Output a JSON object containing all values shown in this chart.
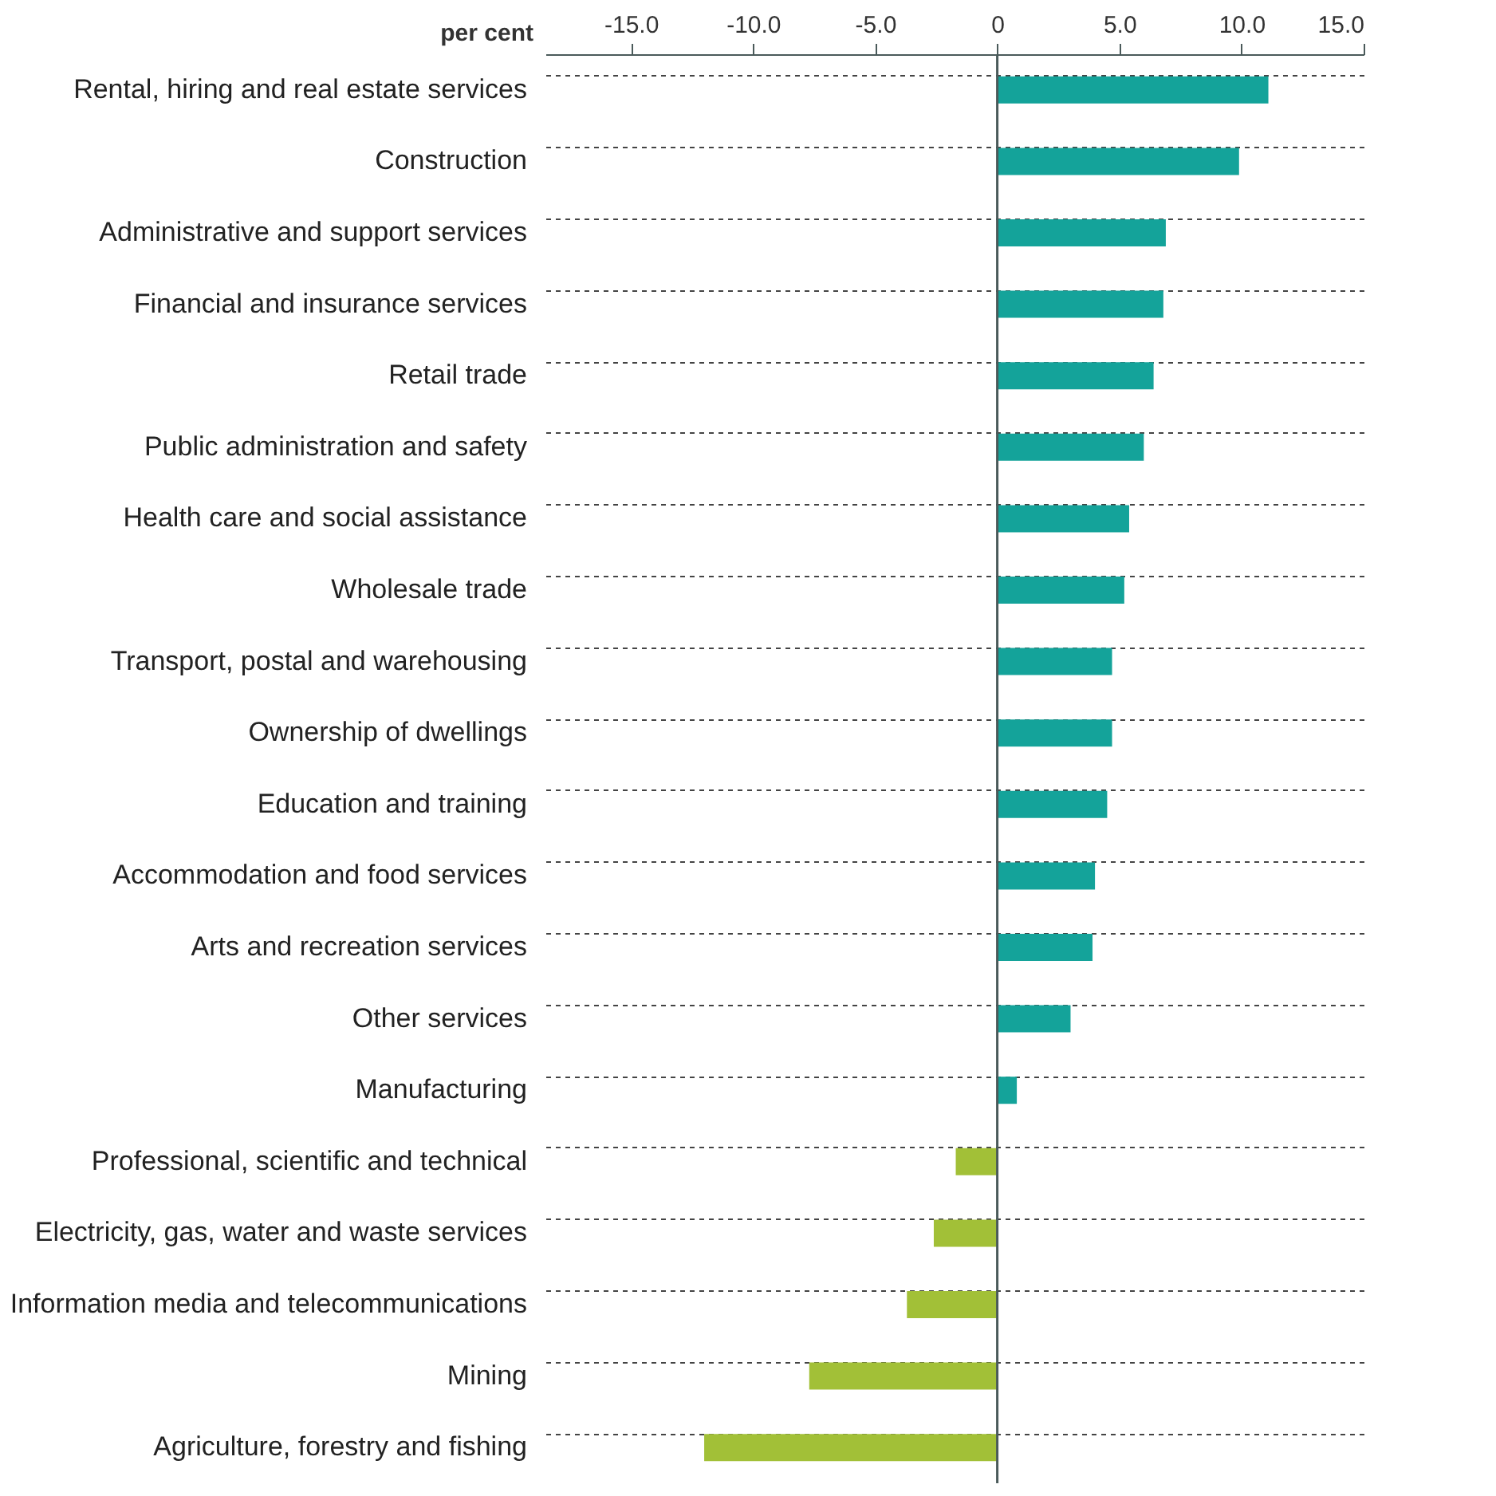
{
  "chart_data": {
    "type": "bar",
    "orientation": "horizontal",
    "xlabel": "per cent",
    "categories": [
      "Rental, hiring and real estate services",
      "Construction",
      "Administrative and support services",
      "Financial and insurance services",
      "Retail trade",
      "Public administration and safety",
      "Health care and social assistance",
      "Wholesale trade",
      "Transport, postal and warehousing",
      "Ownership of dwellings",
      "Education and training",
      "Accommodation and food services",
      "Arts and recreation services",
      "Other services",
      "Manufacturing",
      "Professional, scientific and technical",
      "Electricity, gas, water and waste services",
      "Information media and telecommunications",
      "Mining",
      "Agriculture, forestry and fishing"
    ],
    "values": [
      11.1,
      9.9,
      6.9,
      6.8,
      6.4,
      6.0,
      5.4,
      5.2,
      4.7,
      4.7,
      4.5,
      4.0,
      3.9,
      3.0,
      0.8,
      -1.7,
      -2.6,
      -3.7,
      -7.7,
      -12.0
    ],
    "colors": [
      "#14a39a",
      "#14a39a",
      "#14a39a",
      "#14a39a",
      "#14a39a",
      "#14a39a",
      "#14a39a",
      "#14a39a",
      "#14a39a",
      "#14a39a",
      "#14a39a",
      "#14a39a",
      "#14a39a",
      "#14a39a",
      "#14a39a",
      "#a2c037",
      "#a2c037",
      "#a2c037",
      "#a2c037",
      "#a2c037"
    ],
    "xlim": [
      -18.5,
      15
    ],
    "xticks": [
      {
        "value": -15,
        "label": "-15.0"
      },
      {
        "value": -10,
        "label": "-10.0"
      },
      {
        "value": -5,
        "label": "-5.0"
      },
      0,
      {
        "value": 5,
        "label": "5.0"
      },
      {
        "value": 10,
        "label": "10.0"
      },
      {
        "value": 15,
        "label": "15.0"
      }
    ],
    "grid": "y"
  }
}
